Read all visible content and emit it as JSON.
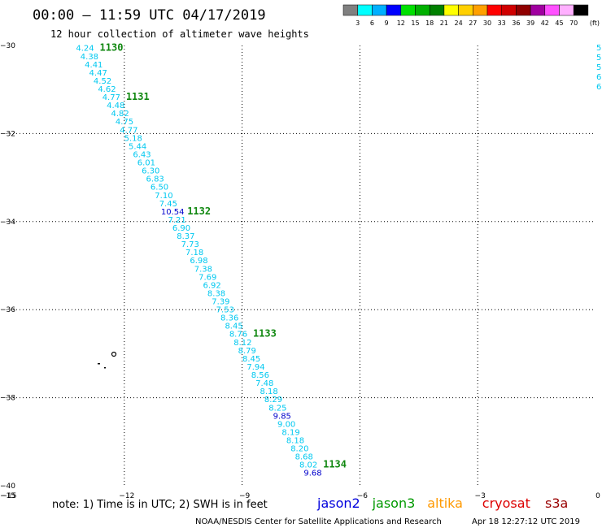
{
  "header": {
    "title": "00:00 – 11:59 UTC 04/17/2019",
    "subtitle": "12 hour collection of altimeter wave heights"
  },
  "legend": {
    "unit": "(ft)",
    "bins": [
      {
        "color": "#808080",
        "label": "3"
      },
      {
        "color": "#00ffff",
        "label": "6"
      },
      {
        "color": "#00b0ff",
        "label": "9"
      },
      {
        "color": "#0000ff",
        "label": "12"
      },
      {
        "color": "#00e000",
        "label": "15"
      },
      {
        "color": "#00b000",
        "label": "18"
      },
      {
        "color": "#008000",
        "label": "21"
      },
      {
        "color": "#ffff00",
        "label": "24"
      },
      {
        "color": "#ffd000",
        "label": "27"
      },
      {
        "color": "#ffa000",
        "label": "30"
      },
      {
        "color": "#ff0000",
        "label": "33"
      },
      {
        "color": "#d00000",
        "label": "36"
      },
      {
        "color": "#900000",
        "label": "39"
      },
      {
        "color": "#a000a0",
        "label": "42"
      },
      {
        "color": "#ff50ff",
        "label": "45"
      },
      {
        "color": "#ffb0ff",
        "label": "70"
      },
      {
        "color": "#000000",
        "label": ""
      }
    ]
  },
  "chart_data": {
    "type": "scatter",
    "x_ticks": [
      -15,
      -12,
      -9,
      -6,
      -3,
      0
    ],
    "y_ticks": [
      -30,
      -32,
      -34,
      -36,
      -38,
      -40
    ],
    "xlim": [
      -15,
      0
    ],
    "ylim": [
      -40,
      -30
    ],
    "grid": true,
    "colors": {
      "light": "#00c8f0",
      "dark": "#0000cc",
      "time": "#118811"
    },
    "track": {
      "start": [
        -13.0,
        -30.05
      ],
      "end": [
        -7.2,
        -39.7
      ],
      "heights": [
        "4.24",
        "4.38",
        "4.41",
        "4.47",
        "4.52",
        "4.62",
        "4.77",
        "4.48",
        "4.82",
        "4.75",
        "4.77",
        "5.18",
        "5.44",
        "6.43",
        "6.01",
        "6.30",
        "6.83",
        "6.50",
        "7.10",
        "7.45",
        "10.54",
        "7.21",
        "6.90",
        "8.37",
        "7.73",
        "7.18",
        "6.98",
        "7.38",
        "7.69",
        "6.92",
        "8.38",
        "7.39",
        "7.53",
        "8.36",
        "8.45",
        "8.76",
        "8.12",
        "8.79",
        "8.45",
        "7.94",
        "8.56",
        "7.48",
        "8.18",
        "8.29",
        "8.25",
        "9.85",
        "9.00",
        "8.19",
        "8.18",
        "8.20",
        "8.68",
        "8.02",
        "9.68"
      ],
      "dark_values": [
        "10.54",
        "9.85",
        "9.68"
      ]
    },
    "times": [
      {
        "label": "1130",
        "index": 0
      },
      {
        "label": "1131",
        "index": 6
      },
      {
        "label": "1132",
        "index": 20
      },
      {
        "label": "1133",
        "index": 35
      },
      {
        "label": "1134",
        "index": 51
      }
    ],
    "edge_values": [
      "5.",
      "5",
      "5",
      "6",
      "6"
    ]
  },
  "footer": {
    "note": "note: 1) Time is in UTC; 2) SWH is in feet",
    "satellites": [
      {
        "name": "jason2",
        "color": "#0000dd"
      },
      {
        "name": "jason3",
        "color": "#009900"
      },
      {
        "name": "altika",
        "color": "#ff9900"
      },
      {
        "name": "cryosat",
        "color": "#dd0000"
      },
      {
        "name": "s3a",
        "color": "#990000"
      }
    ],
    "credit": "NOAA/NESDIS Center for Satellite Applications and Research",
    "timestamp": "Apr 18 12:27:12 UTC 2019"
  }
}
